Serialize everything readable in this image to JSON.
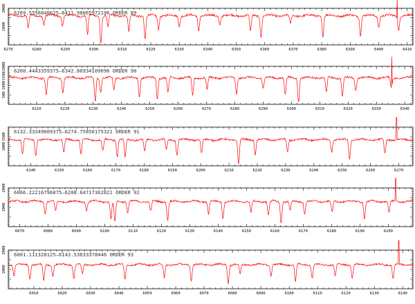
{
  "figure": {
    "line_color": "#ff0000",
    "axes_color": "#000000",
    "background": "#ffffff"
  },
  "chart_data": [
    {
      "type": "line",
      "title": "6269.5556840625–6411.98065972196 ORDER 89",
      "xlim": [
        6270,
        6412
      ],
      "xticks": [
        6270,
        6280,
        6290,
        6300,
        6310,
        6320,
        6330,
        6340,
        6350,
        6360,
        6370,
        6380,
        6390,
        6400,
        6410
      ],
      "ylim": [
        0,
        2000
      ],
      "yticks": [
        1000,
        2000
      ],
      "continuum": 1600,
      "lines": [
        {
          "x": 6277.0,
          "depth": 0.45
        },
        {
          "x": 6282.5,
          "depth": 0.3
        },
        {
          "x": 6289.0,
          "depth": 0.35
        },
        {
          "x": 6297.8,
          "depth": 0.65
        },
        {
          "x": 6302.5,
          "depth": 0.95
        },
        {
          "x": 6305.0,
          "depth": 0.4
        },
        {
          "x": 6312.3,
          "depth": 0.55
        },
        {
          "x": 6318.0,
          "depth": 0.8
        },
        {
          "x": 6322.7,
          "depth": 0.45
        },
        {
          "x": 6330.0,
          "depth": 0.35
        },
        {
          "x": 6336.8,
          "depth": 0.5
        },
        {
          "x": 6344.2,
          "depth": 0.3
        },
        {
          "x": 6355.0,
          "depth": 0.55
        },
        {
          "x": 6358.7,
          "depth": 0.75
        },
        {
          "x": 6369.0,
          "depth": 0.3
        },
        {
          "x": 6380.4,
          "depth": 0.7
        },
        {
          "x": 6393.6,
          "depth": 0.65
        },
        {
          "x": 6400.0,
          "depth": 0.4
        },
        {
          "x": 6407.0,
          "depth": 0.5
        }
      ],
      "spike": {
        "x": 6406.5,
        "height": 4.0
      }
    },
    {
      "type": "line",
      "title": "6200.4443359375–6342.86934109696 ORDER 90",
      "xlim": [
        6200,
        6342.9
      ],
      "xticks": [
        6210,
        6220,
        6230,
        6240,
        6250,
        6260,
        6270,
        6280,
        6290,
        6300,
        6310,
        6320,
        6330,
        6340
      ],
      "ylim": [
        0,
        2000
      ],
      "yticks": [
        500,
        1000,
        1500,
        2000
      ],
      "continuum": 1400,
      "lines": [
        {
          "x": 6213.4,
          "depth": 0.65
        },
        {
          "x": 6219.3,
          "depth": 0.55
        },
        {
          "x": 6230.7,
          "depth": 0.9
        },
        {
          "x": 6232.6,
          "depth": 0.55
        },
        {
          "x": 6237.3,
          "depth": 0.45
        },
        {
          "x": 6246.3,
          "depth": 0.7
        },
        {
          "x": 6252.6,
          "depth": 0.8
        },
        {
          "x": 6256.4,
          "depth": 0.55
        },
        {
          "x": 6265.1,
          "depth": 0.7
        },
        {
          "x": 6270.2,
          "depth": 0.45
        },
        {
          "x": 6280.6,
          "depth": 0.6
        },
        {
          "x": 6290.0,
          "depth": 0.4
        },
        {
          "x": 6297.8,
          "depth": 0.65
        },
        {
          "x": 6302.5,
          "depth": 0.9
        },
        {
          "x": 6312.3,
          "depth": 0.55
        },
        {
          "x": 6318.0,
          "depth": 0.7
        },
        {
          "x": 6322.7,
          "depth": 0.45
        },
        {
          "x": 6335.3,
          "depth": 0.4
        }
      ],
      "spike": {
        "x": 6335.5,
        "height": 4.0
      }
    },
    {
      "type": "line",
      "title": "6132.33349609375–6274.75850175321 ORDER 91",
      "xlim": [
        6132,
        6275
      ],
      "xticks": [
        6140,
        6150,
        6160,
        6170,
        6180,
        6190,
        6200,
        6210,
        6220,
        6230,
        6240,
        6250,
        6260,
        6270
      ],
      "ylim": [
        0,
        2000
      ],
      "yticks": [
        1000,
        1500
      ],
      "continuum": 1350,
      "lines": [
        {
          "x": 6137.0,
          "depth": 0.55
        },
        {
          "x": 6141.7,
          "depth": 0.6
        },
        {
          "x": 6151.6,
          "depth": 0.5
        },
        {
          "x": 6157.7,
          "depth": 0.55
        },
        {
          "x": 6165.4,
          "depth": 0.45
        },
        {
          "x": 6170.5,
          "depth": 0.65
        },
        {
          "x": 6173.3,
          "depth": 0.7
        },
        {
          "x": 6180.2,
          "depth": 0.5
        },
        {
          "x": 6187.9,
          "depth": 0.4
        },
        {
          "x": 6191.6,
          "depth": 0.6
        },
        {
          "x": 6200.3,
          "depth": 0.55
        },
        {
          "x": 6213.4,
          "depth": 0.95
        },
        {
          "x": 6219.3,
          "depth": 0.55
        },
        {
          "x": 6230.7,
          "depth": 0.5
        },
        {
          "x": 6246.3,
          "depth": 0.45
        },
        {
          "x": 6252.6,
          "depth": 0.75
        },
        {
          "x": 6265.1,
          "depth": 0.55
        }
      ],
      "spike": {
        "x": 6269.2,
        "height": 4.0
      }
    },
    {
      "type": "line",
      "title": "6066.22216796875–6208.64717362821 ORDER 92",
      "xlim": [
        6066,
        6208.7
      ],
      "xticks": [
        6070,
        6080,
        6090,
        6100,
        6110,
        6120,
        6130,
        6140,
        6150,
        6160,
        6170,
        6180,
        6190,
        6200
      ],
      "ylim": [
        0,
        2000
      ],
      "yticks": [
        1000,
        2000
      ],
      "continuum": 1300,
      "lines": [
        {
          "x": 6079.0,
          "depth": 0.45
        },
        {
          "x": 6082.7,
          "depth": 0.4
        },
        {
          "x": 6093.6,
          "depth": 0.35
        },
        {
          "x": 6102.2,
          "depth": 0.7
        },
        {
          "x": 6103.6,
          "depth": 0.85
        },
        {
          "x": 6108.1,
          "depth": 0.45
        },
        {
          "x": 6116.2,
          "depth": 0.4
        },
        {
          "x": 6122.2,
          "depth": 0.75
        },
        {
          "x": 6136.6,
          "depth": 0.5
        },
        {
          "x": 6141.7,
          "depth": 0.65
        },
        {
          "x": 6151.6,
          "depth": 0.45
        },
        {
          "x": 6157.7,
          "depth": 0.55
        },
        {
          "x": 6162.2,
          "depth": 0.85
        },
        {
          "x": 6165.4,
          "depth": 0.4
        },
        {
          "x": 6170.5,
          "depth": 0.5
        },
        {
          "x": 6180.2,
          "depth": 0.45
        },
        {
          "x": 6191.6,
          "depth": 0.7
        },
        {
          "x": 6200.3,
          "depth": 0.45
        }
      ],
      "spike": {
        "x": 6202.6,
        "height": 4.0
      }
    },
    {
      "type": "line",
      "title": "6001.111328125–6143.53633378446 ORDER 93",
      "xlim": [
        6001,
        6143.6
      ],
      "xticks": [
        6010,
        6020,
        6030,
        6040,
        6050,
        6060,
        6070,
        6080,
        6090,
        6100,
        6110,
        6120,
        6130,
        6140
      ],
      "ylim": [
        0,
        2000
      ],
      "yticks": [
        1000,
        2000
      ],
      "continuum": 1250,
      "lines": [
        {
          "x": 6003.0,
          "depth": 0.45
        },
        {
          "x": 6008.6,
          "depth": 0.6
        },
        {
          "x": 6013.5,
          "depth": 0.7
        },
        {
          "x": 6016.7,
          "depth": 0.45
        },
        {
          "x": 6024.1,
          "depth": 0.55
        },
        {
          "x": 6027.1,
          "depth": 0.4
        },
        {
          "x": 6042.1,
          "depth": 0.6
        },
        {
          "x": 6056.0,
          "depth": 0.55
        },
        {
          "x": 6065.5,
          "depth": 0.65
        },
        {
          "x": 6078.5,
          "depth": 0.75
        },
        {
          "x": 6082.7,
          "depth": 0.4
        },
        {
          "x": 6093.6,
          "depth": 0.45
        },
        {
          "x": 6102.2,
          "depth": 0.7
        },
        {
          "x": 6108.1,
          "depth": 0.55
        },
        {
          "x": 6116.2,
          "depth": 0.5
        },
        {
          "x": 6122.2,
          "depth": 0.55
        },
        {
          "x": 6136.6,
          "depth": 0.6
        }
      ],
      "spike": {
        "x": 6138.6,
        "height": 4.0
      }
    }
  ]
}
